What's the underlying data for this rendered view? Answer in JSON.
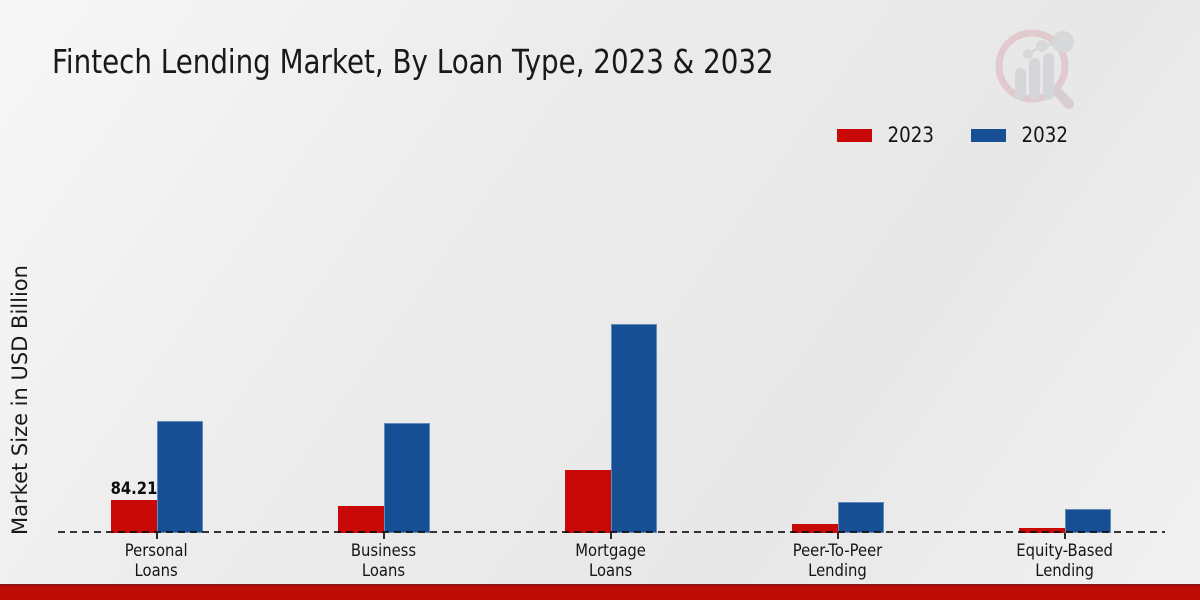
{
  "title": "Fintech Lending Market, By Loan Type, 2023 & 2032",
  "y_axis": {
    "label": "Market Size in USD Billion"
  },
  "legend": {
    "items": [
      {
        "label": "2023",
        "color": "#c90808"
      },
      {
        "label": "2032",
        "color": "#164f94"
      }
    ]
  },
  "watermark": {
    "name": "market-research-future-logo"
  },
  "footer": {
    "bar_color": "#bd0b06"
  },
  "chart_data": {
    "type": "bar",
    "title": "Fintech Lending Market, By Loan Type, 2023 & 2032",
    "xlabel": "",
    "ylabel": "Market Size in USD Billion",
    "categories": [
      "Personal Loans",
      "Business Loans",
      "Mortgage Loans",
      "Peer-To-Peer Lending",
      "Equity-Based Lending"
    ],
    "series": [
      {
        "name": "2023",
        "color": "#c90808",
        "values": [
          84.21,
          68.9,
          160.8,
          23.0,
          12.8
        ]
      },
      {
        "name": "2032",
        "color": "#164f94",
        "values": [
          285.9,
          280.7,
          533.3,
          79.1,
          61.2
        ]
      }
    ],
    "data_labels": [
      {
        "category": "Personal Loans",
        "series": "2023",
        "text": "84.21"
      }
    ],
    "legend_position": "top-right",
    "grid": false,
    "baseline_style": "dashed",
    "ylim": [
      0,
      560
    ]
  }
}
